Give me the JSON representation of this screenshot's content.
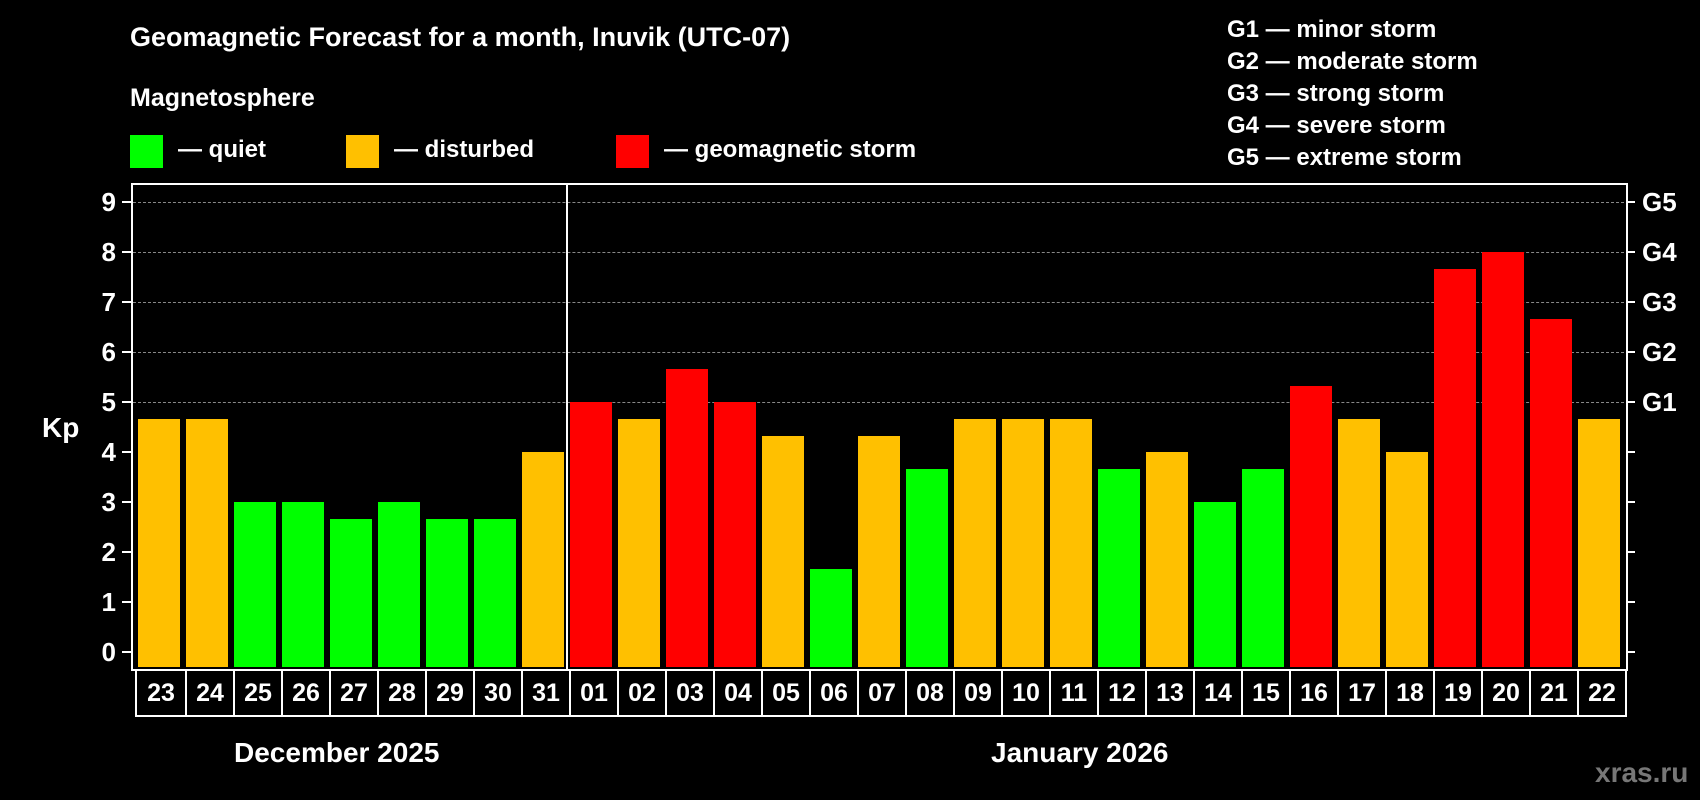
{
  "header": {
    "title": "Geomagnetic Forecast for a month, Inuvik (UTC-07)",
    "subtitle": "Magnetosphere"
  },
  "legend": [
    {
      "label": "— quiet",
      "color": "#00ff00"
    },
    {
      "label": "— disturbed",
      "color": "#ffc000"
    },
    {
      "label": "— geomagnetic storm",
      "color": "#ff0000"
    }
  ],
  "storm_scale": [
    "G1 — minor storm",
    "G2 — moderate storm",
    "G3 — strong storm",
    "G4 — severe storm",
    "G5 — extreme storm"
  ],
  "axis": {
    "ylabel": "Kp",
    "left_ticks": [
      "0",
      "1",
      "2",
      "3",
      "4",
      "5",
      "6",
      "7",
      "8",
      "9"
    ],
    "right_ticks": [
      "G1",
      "G2",
      "G3",
      "G4",
      "G5"
    ]
  },
  "months": {
    "first": "December 2025",
    "second": "January 2026"
  },
  "watermark": "xras.ru",
  "colors": {
    "quiet": "#00ff00",
    "disturbed": "#ffc000",
    "storm": "#ff0000",
    "background": "#000000",
    "grid": "#888888"
  },
  "chart_data": {
    "type": "bar",
    "title": "Geomagnetic Forecast for a month, Inuvik (UTC-07)",
    "xlabel": "",
    "ylabel": "Kp",
    "ylim": [
      0,
      9
    ],
    "grid": "dashed horizontal lines at Kp 5-9",
    "secondary_y_ticks": {
      "5": "G1",
      "6": "G2",
      "7": "G3",
      "8": "G4",
      "9": "G5"
    },
    "x_groups": [
      {
        "label": "December 2025",
        "days": [
          "23",
          "24",
          "25",
          "26",
          "27",
          "28",
          "29",
          "30",
          "31"
        ]
      },
      {
        "label": "January 2026",
        "days": [
          "01",
          "02",
          "03",
          "04",
          "05",
          "06",
          "07",
          "08",
          "09",
          "10",
          "11",
          "12",
          "13",
          "14",
          "15",
          "16",
          "17",
          "18",
          "19",
          "20",
          "21",
          "22"
        ]
      }
    ],
    "categories": [
      "23",
      "24",
      "25",
      "26",
      "27",
      "28",
      "29",
      "30",
      "31",
      "01",
      "02",
      "03",
      "04",
      "05",
      "06",
      "07",
      "08",
      "09",
      "10",
      "11",
      "12",
      "13",
      "14",
      "15",
      "16",
      "17",
      "18",
      "19",
      "20",
      "21",
      "22"
    ],
    "values": [
      4.67,
      4.67,
      3,
      3,
      2.67,
      3,
      2.67,
      2.67,
      4,
      5,
      4.67,
      5.67,
      5,
      4.33,
      1.67,
      4.33,
      3.67,
      4.67,
      4.67,
      4.67,
      3.67,
      4,
      3,
      3.67,
      5.33,
      4.67,
      4,
      7.67,
      8,
      6.67,
      4.67
    ],
    "status": [
      "disturbed",
      "disturbed",
      "quiet",
      "quiet",
      "quiet",
      "quiet",
      "quiet",
      "quiet",
      "disturbed",
      "storm",
      "disturbed",
      "storm",
      "storm",
      "disturbed",
      "quiet",
      "disturbed",
      "quiet",
      "disturbed",
      "disturbed",
      "disturbed",
      "quiet",
      "disturbed",
      "quiet",
      "quiet",
      "storm",
      "disturbed",
      "disturbed",
      "storm",
      "storm",
      "storm",
      "disturbed"
    ],
    "legend": [
      "quiet",
      "disturbed",
      "geomagnetic storm"
    ]
  }
}
